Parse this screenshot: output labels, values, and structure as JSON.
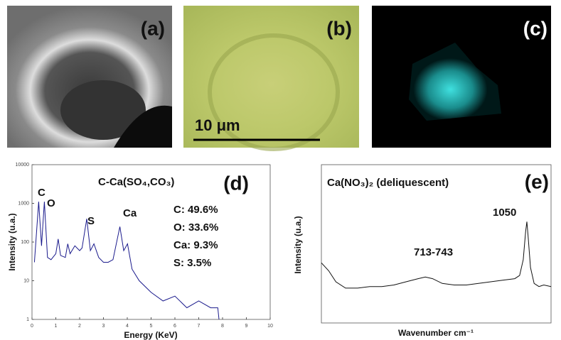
{
  "images": [
    {
      "label": "(a)"
    },
    {
      "label": "(b)",
      "scale_bar": "10 μm"
    },
    {
      "label": "(c)"
    }
  ],
  "chart_data": [
    {
      "type": "line",
      "label": "(d)",
      "title": "C-Ca(SO₄,CO₃)",
      "x_label": "Energy (KeV)",
      "y_label": "Intensity (u.a.)",
      "log_y": true,
      "color": "#1a1a8c",
      "annotations": [
        "C",
        "O",
        "S",
        "Ca",
        "C: 49.6%",
        "O: 33.6%",
        "Ca: 9.3%",
        "S: 3.5%"
      ],
      "xlim": [
        0,
        10
      ],
      "ylim": [
        1,
        10000
      ],
      "xticks": [
        0,
        1,
        2,
        3,
        4,
        5,
        6,
        7,
        8,
        9,
        10
      ],
      "yticks": [
        1,
        10,
        100,
        1000,
        10000
      ],
      "x": [
        0.1,
        0.28,
        0.4,
        0.52,
        0.65,
        0.8,
        1.0,
        1.1,
        1.2,
        1.4,
        1.5,
        1.6,
        1.8,
        2.0,
        2.1,
        2.3,
        2.45,
        2.6,
        2.8,
        3.0,
        3.2,
        3.4,
        3.69,
        3.85,
        4.01,
        4.2,
        4.5,
        5.0,
        5.5,
        6.0,
        6.5,
        7.0,
        7.5,
        7.8,
        7.85
      ],
      "values": [
        30,
        1100,
        80,
        1100,
        40,
        35,
        50,
        120,
        45,
        40,
        90,
        50,
        80,
        60,
        70,
        400,
        60,
        90,
        40,
        30,
        30,
        35,
        250,
        60,
        90,
        20,
        10,
        5,
        3,
        4,
        2,
        3,
        2,
        2,
        1
      ]
    },
    {
      "type": "line",
      "label": "(e)",
      "title": "Ca(NO₃)₂ (deliquescent)",
      "x_label": "Wavenumber cm⁻¹",
      "y_label": "Intensity (u.a.)",
      "log_y": false,
      "color": "#111111",
      "annotations": [
        "1050",
        "713-743"
      ],
      "xlim": [
        200,
        1150
      ],
      "ylim": [
        0,
        100
      ],
      "x": [
        200,
        230,
        260,
        300,
        350,
        400,
        450,
        500,
        550,
        600,
        630,
        660,
        700,
        750,
        800,
        850,
        900,
        950,
        1000,
        1020,
        1035,
        1045,
        1050,
        1055,
        1065,
        1080,
        1100,
        1120,
        1150
      ],
      "values": [
        38,
        33,
        26,
        22,
        22,
        23,
        23,
        24,
        26,
        28,
        29,
        28,
        25,
        24,
        24,
        25,
        26,
        27,
        28,
        30,
        40,
        58,
        64,
        55,
        35,
        25,
        23,
        24,
        23
      ]
    }
  ]
}
